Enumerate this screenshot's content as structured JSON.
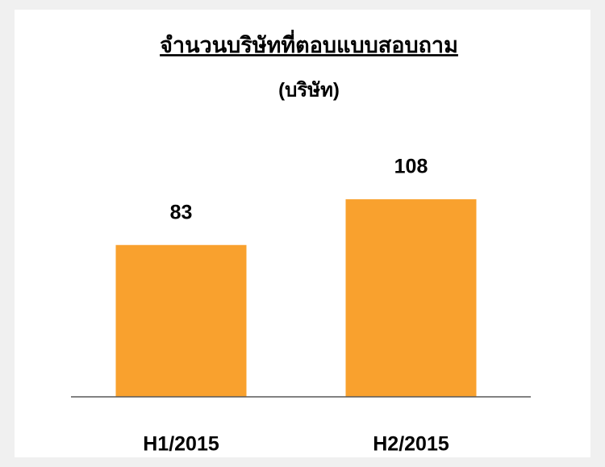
{
  "chart_data": {
    "type": "bar",
    "title": "จำนวนบริษัทที่ตอบแบบสอบถาม",
    "subtitle": "(บริษัท)",
    "categories": [
      "H1/2015",
      "H2/2015"
    ],
    "values": [
      83,
      108
    ],
    "color": "#f9a12e"
  }
}
